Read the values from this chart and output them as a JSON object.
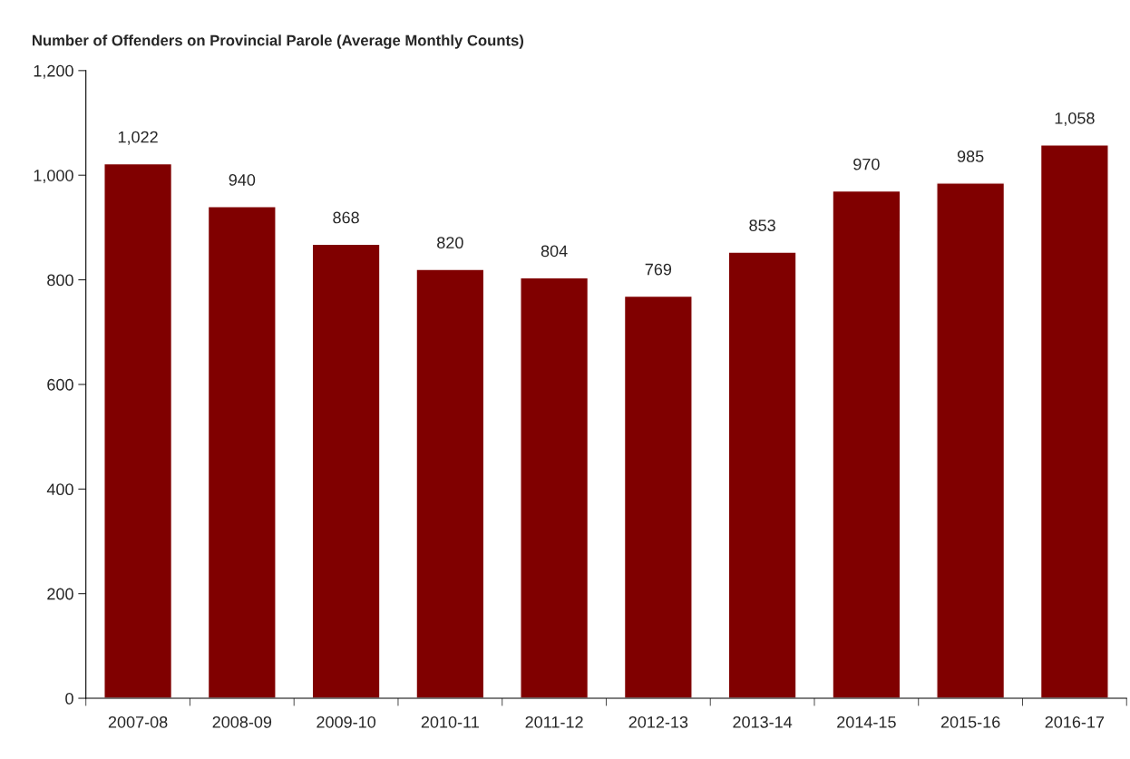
{
  "chart_data": {
    "type": "bar",
    "title": "Number of Offenders on Provincial Parole (Average Monthly Counts)",
    "categories": [
      "2007-08",
      "2008-09",
      "2009-10",
      "2010-11",
      "2011-12",
      "2012-13",
      "2013-14",
      "2014-15",
      "2015-16",
      "2016-17"
    ],
    "values": [
      1022,
      940,
      868,
      820,
      804,
      769,
      853,
      970,
      985,
      1058
    ],
    "value_labels": [
      "1,022",
      "940",
      "868",
      "820",
      "804",
      "769",
      "853",
      "970",
      "985",
      "1,058"
    ],
    "color": "#800000",
    "ylim": [
      0,
      1200
    ],
    "yticks": [
      0,
      200,
      400,
      600,
      800,
      {
        "value": 1000,
        "label": "1,000"
      },
      {
        "value": 1200,
        "label": "1,200"
      }
    ],
    "grid": false,
    "legend": false
  }
}
